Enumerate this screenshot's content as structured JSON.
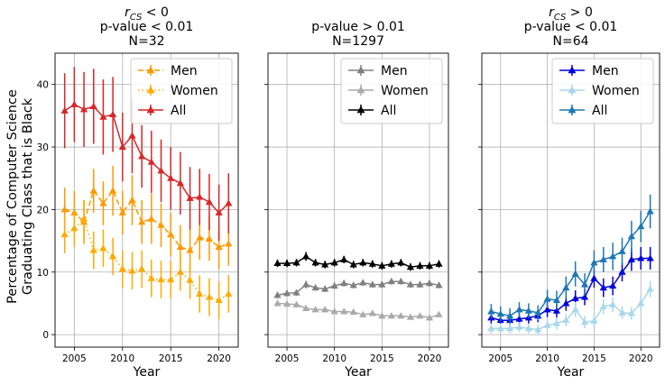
{
  "figure": {
    "ylabel_line1": "Percentage of Computer Science",
    "ylabel_line2": "Graduating Class that is Black"
  },
  "chart_data": [
    {
      "type": "line",
      "title_lines": [
        "r_CS < 0",
        "p-value < 0.01",
        "N=32"
      ],
      "title_math": {
        "base": "r",
        "sub": "CS",
        "rest": " < 0"
      },
      "xlabel": "Year",
      "xlim": [
        2003,
        2022
      ],
      "ylim": [
        -2,
        45
      ],
      "xticks": [
        2005,
        2010,
        2015,
        2020
      ],
      "yticks": [
        0,
        10,
        20,
        30,
        40
      ],
      "show_ytick_labels": true,
      "grid": true,
      "legend": "top-right",
      "x": [
        2004,
        2005,
        2006,
        2007,
        2008,
        2009,
        2010,
        2011,
        2012,
        2013,
        2014,
        2015,
        2016,
        2017,
        2018,
        2019,
        2020,
        2021
      ],
      "series": [
        {
          "name": "Men",
          "color": "#ff9900",
          "style": "dashed",
          "values": [
            20.0,
            19.5,
            18.0,
            23.0,
            21.0,
            23.0,
            19.5,
            21.5,
            18.0,
            18.5,
            17.5,
            16.0,
            14.0,
            13.5,
            15.5,
            15.3,
            14.0,
            14.5
          ],
          "errors": [
            3.5,
            3.5,
            3.5,
            3.5,
            3.5,
            4.0,
            3.5,
            4.0,
            3.5,
            4.0,
            3.5,
            3.5,
            3.5,
            3.5,
            3.5,
            3.5,
            3.5,
            3.5
          ]
        },
        {
          "name": "Women",
          "color": "#ffaa00",
          "style": "dotted",
          "values": [
            16.0,
            17.0,
            18.5,
            13.5,
            13.8,
            12.5,
            10.5,
            10.2,
            10.5,
            9.0,
            8.8,
            8.8,
            10.0,
            8.7,
            6.5,
            6.0,
            5.5,
            6.5
          ],
          "errors": [
            3.0,
            3.0,
            3.0,
            3.0,
            3.0,
            3.0,
            3.0,
            3.0,
            3.0,
            3.0,
            3.0,
            3.0,
            3.0,
            3.0,
            3.0,
            3.0,
            3.0,
            3.0
          ]
        },
        {
          "name": "All",
          "color": "#d62728",
          "style": "solid",
          "values": [
            35.8,
            36.8,
            36.0,
            36.5,
            34.8,
            35.2,
            30.0,
            31.8,
            28.5,
            27.6,
            26.2,
            25.0,
            24.2,
            21.8,
            22.0,
            21.2,
            19.5,
            21.0
          ],
          "errors": [
            6.0,
            6.0,
            6.0,
            6.0,
            6.0,
            6.0,
            5.5,
            6.0,
            5.0,
            5.0,
            5.0,
            5.0,
            5.0,
            5.0,
            4.5,
            4.5,
            4.5,
            4.8
          ]
        }
      ]
    },
    {
      "type": "line",
      "title_lines": [
        "p-value > 0.01",
        "N=1297"
      ],
      "xlabel": "Year",
      "xlim": [
        2003,
        2022
      ],
      "ylim": [
        -2,
        45
      ],
      "xticks": [
        2005,
        2010,
        2015,
        2020
      ],
      "yticks": [
        0,
        10,
        20,
        30,
        40
      ],
      "show_ytick_labels": false,
      "grid": true,
      "legend": "top-right",
      "x": [
        2004,
        2005,
        2006,
        2007,
        2008,
        2009,
        2010,
        2011,
        2012,
        2013,
        2014,
        2015,
        2016,
        2017,
        2018,
        2019,
        2020,
        2021
      ],
      "series": [
        {
          "name": "Men",
          "color": "#808080",
          "style": "solid",
          "values": [
            6.3,
            6.6,
            6.7,
            8.0,
            7.5,
            7.3,
            7.8,
            8.2,
            7.9,
            8.3,
            8.0,
            8.0,
            8.5,
            8.5,
            8.0,
            8.0,
            8.2,
            7.9
          ],
          "errors": [
            0.5,
            0.5,
            0.5,
            0.6,
            0.5,
            0.5,
            0.5,
            0.5,
            0.5,
            0.5,
            0.5,
            0.5,
            0.5,
            0.5,
            0.5,
            0.5,
            0.5,
            0.5
          ]
        },
        {
          "name": "Women",
          "color": "#aaaaaa",
          "style": "solid",
          "values": [
            5.0,
            4.9,
            4.8,
            4.2,
            4.0,
            4.0,
            3.7,
            3.7,
            3.6,
            3.2,
            3.4,
            3.0,
            3.0,
            3.0,
            2.8,
            3.0,
            2.7,
            3.2
          ],
          "errors": [
            0.4,
            0.4,
            0.4,
            0.4,
            0.4,
            0.4,
            0.4,
            0.4,
            0.4,
            0.4,
            0.4,
            0.4,
            0.4,
            0.4,
            0.4,
            0.4,
            0.4,
            0.4
          ]
        },
        {
          "name": "All",
          "color": "#000000",
          "style": "solid",
          "values": [
            11.4,
            11.4,
            11.5,
            12.5,
            11.5,
            11.2,
            11.5,
            12.0,
            11.2,
            11.5,
            11.3,
            11.0,
            11.3,
            11.5,
            10.8,
            11.0,
            11.0,
            11.3
          ],
          "errors": [
            0.6,
            0.6,
            0.6,
            0.7,
            0.6,
            0.6,
            0.6,
            0.6,
            0.6,
            0.6,
            0.6,
            0.6,
            0.6,
            0.6,
            0.6,
            0.6,
            0.6,
            0.6
          ]
        }
      ]
    },
    {
      "type": "line",
      "title_lines": [
        "r_CS > 0",
        "p-value < 0.01",
        "N=64"
      ],
      "title_math": {
        "base": "r",
        "sub": "CS",
        "rest": " > 0"
      },
      "xlabel": "Year",
      "xlim": [
        2003,
        2022
      ],
      "ylim": [
        -2,
        45
      ],
      "xticks": [
        2005,
        2010,
        2015,
        2020
      ],
      "yticks": [
        0,
        10,
        20,
        30,
        40
      ],
      "show_ytick_labels": false,
      "grid": true,
      "legend": "top-right",
      "x": [
        2004,
        2005,
        2006,
        2007,
        2008,
        2009,
        2010,
        2011,
        2012,
        2013,
        2014,
        2015,
        2016,
        2017,
        2018,
        2019,
        2020,
        2021
      ],
      "series": [
        {
          "name": "Men",
          "color": "#0000dd",
          "style": "solid",
          "values": [
            2.7,
            2.3,
            2.3,
            2.5,
            2.7,
            3.0,
            4.0,
            3.8,
            5.0,
            5.8,
            6.0,
            9.0,
            7.5,
            7.8,
            10.0,
            12.0,
            12.2,
            12.2
          ],
          "errors": [
            1.0,
            1.0,
            1.0,
            1.0,
            1.0,
            1.0,
            1.2,
            1.2,
            1.2,
            1.3,
            1.3,
            1.5,
            1.5,
            1.5,
            1.5,
            1.8,
            1.8,
            1.8
          ]
        },
        {
          "name": "Women",
          "color": "#a8d8ea",
          "style": "solid",
          "values": [
            1.0,
            1.0,
            1.0,
            1.2,
            1.0,
            0.8,
            1.5,
            1.8,
            2.3,
            4.0,
            2.0,
            2.2,
            4.5,
            4.8,
            3.5,
            3.4,
            5.0,
            7.3
          ],
          "errors": [
            0.8,
            0.8,
            0.8,
            0.8,
            0.8,
            0.8,
            1.0,
            1.0,
            1.0,
            1.2,
            1.0,
            1.0,
            1.2,
            1.2,
            1.0,
            1.0,
            1.2,
            1.3
          ]
        },
        {
          "name": "All",
          "color": "#1f77b4",
          "style": "solid",
          "values": [
            3.7,
            3.3,
            3.0,
            4.0,
            3.8,
            3.5,
            5.7,
            5.5,
            7.5,
            9.7,
            8.0,
            11.5,
            12.0,
            12.5,
            13.3,
            15.7,
            17.3,
            19.7
          ],
          "errors": [
            1.2,
            1.2,
            1.2,
            1.2,
            1.2,
            1.2,
            1.5,
            1.5,
            1.8,
            2.0,
            1.8,
            2.0,
            2.0,
            2.2,
            2.2,
            2.5,
            2.5,
            2.7
          ]
        }
      ]
    }
  ]
}
